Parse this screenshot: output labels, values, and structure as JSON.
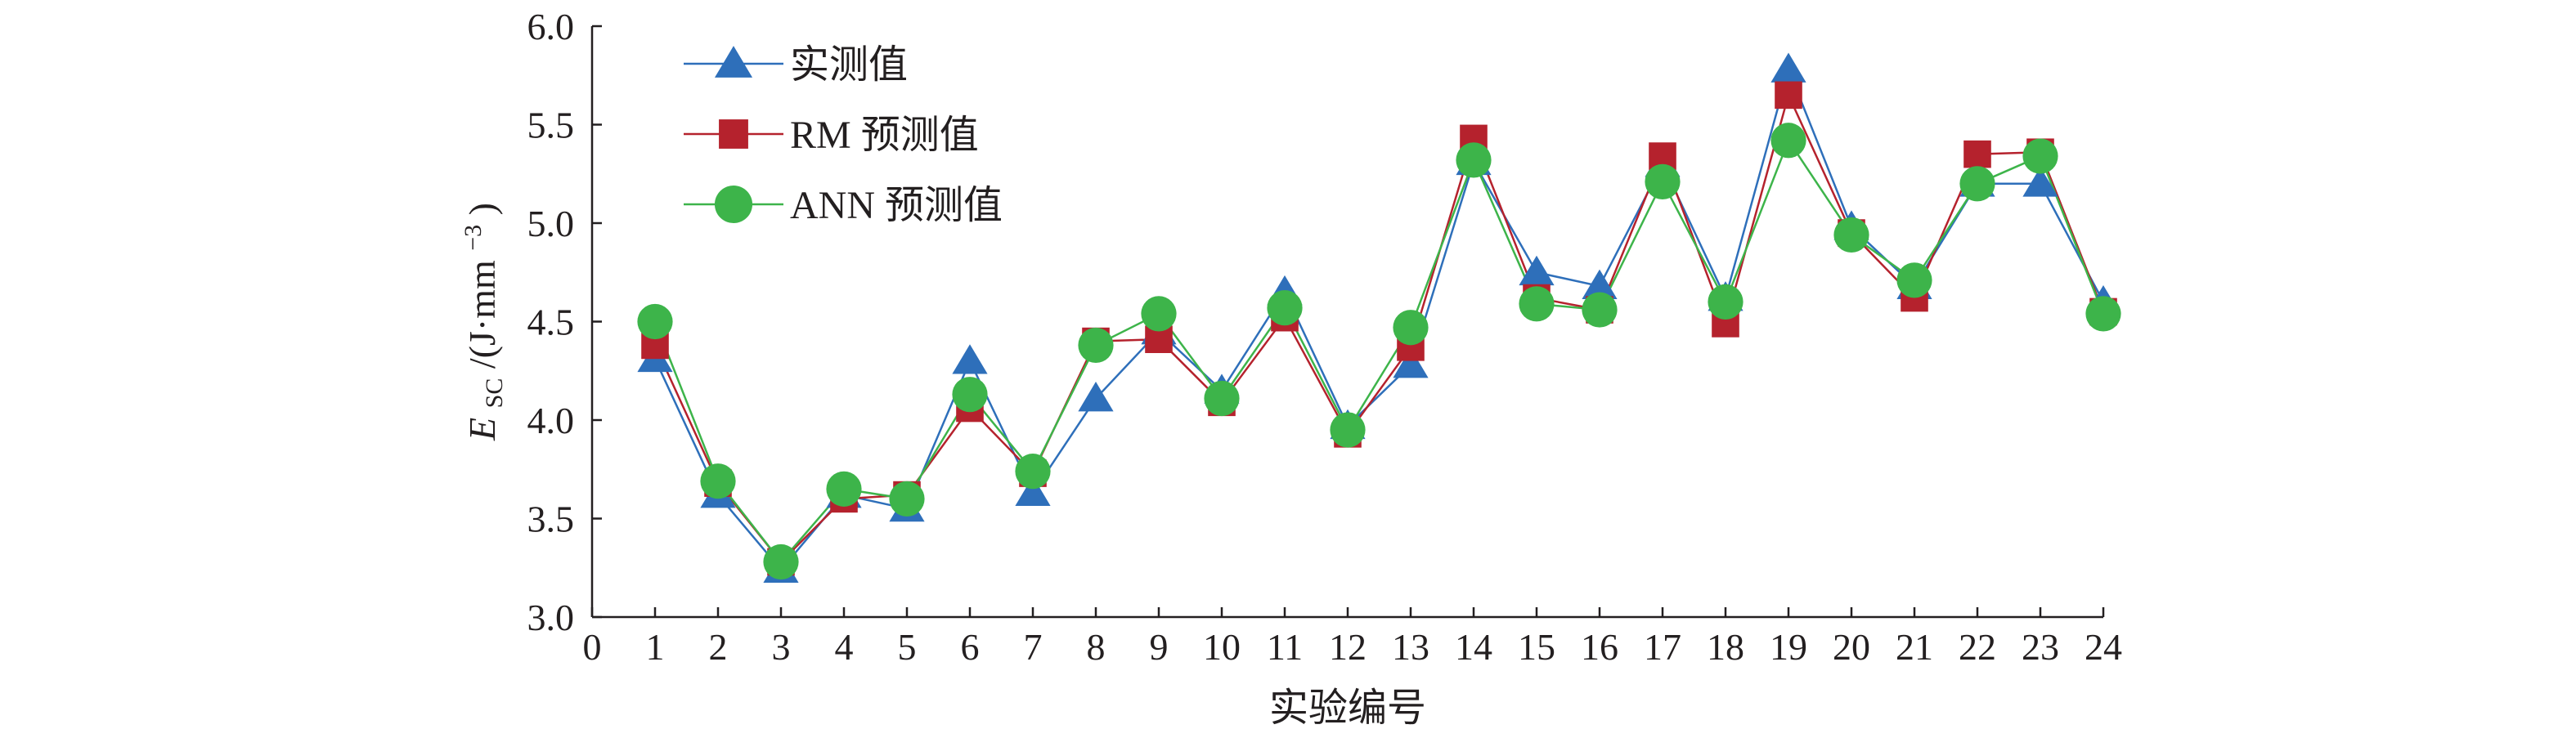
{
  "chart_data": {
    "type": "line",
    "title": "",
    "xlabel": "实验编号",
    "ylabel": {
      "main": "E",
      "subscript": "SC",
      "unit_prefix": "/(J·mm",
      "superscript": "−3",
      "unit_suffix": ")"
    },
    "x_ticks": [
      "0",
      "1",
      "2",
      "3",
      "4",
      "5",
      "6",
      "7",
      "8",
      "9",
      "10",
      "11",
      "12",
      "13",
      "14",
      "15",
      "16",
      "17",
      "18",
      "19",
      "20",
      "21",
      "22",
      "23",
      "24"
    ],
    "y_ticks": [
      "3.0",
      "3.5",
      "4.0",
      "4.5",
      "5.0",
      "5.5",
      "6.0"
    ],
    "xlim": [
      0,
      24
    ],
    "ylim": [
      3.0,
      6.0
    ],
    "grid": false,
    "legend_position": "top-left",
    "x": [
      1,
      2,
      3,
      4,
      5,
      6,
      7,
      8,
      9,
      10,
      11,
      12,
      13,
      14,
      15,
      16,
      17,
      18,
      19,
      20,
      21,
      22,
      23,
      24
    ],
    "series": [
      {
        "name": "实测值",
        "marker": "triangle",
        "color": "#2e6fba",
        "values": [
          4.31,
          3.62,
          3.24,
          3.62,
          3.55,
          4.3,
          3.63,
          4.11,
          4.45,
          4.15,
          4.65,
          3.97,
          4.28,
          5.31,
          4.75,
          4.68,
          5.3,
          4.62,
          5.78,
          4.98,
          4.68,
          5.2,
          5.2,
          4.6
        ]
      },
      {
        "name": "RM 预测值",
        "marker": "square",
        "color": "#b5222d",
        "values": [
          4.38,
          3.68,
          3.28,
          3.6,
          3.62,
          4.06,
          3.73,
          4.4,
          4.41,
          4.09,
          4.52,
          3.93,
          4.37,
          5.43,
          4.62,
          4.56,
          5.34,
          4.49,
          5.65,
          4.95,
          4.62,
          5.35,
          5.36,
          4.55
        ]
      },
      {
        "name": "ANN 预测值",
        "marker": "circle",
        "color": "#3db44a",
        "values": [
          4.5,
          3.69,
          3.28,
          3.65,
          3.6,
          4.13,
          3.74,
          4.38,
          4.54,
          4.11,
          4.57,
          3.95,
          4.47,
          5.32,
          4.59,
          4.56,
          5.21,
          4.6,
          5.42,
          4.94,
          4.71,
          5.2,
          5.34,
          4.54
        ]
      }
    ]
  }
}
